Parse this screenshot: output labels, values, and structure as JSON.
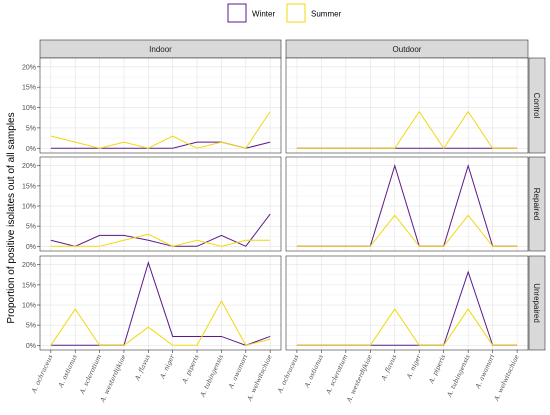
{
  "chart_data": {
    "type": "line",
    "ylabel": "Proportion of positive isolates out of all samples",
    "x": [
      "A. ochraceus",
      "A. ostianus",
      "A. sclerotium",
      "A. westerdijkiae",
      "A. flavus",
      "A. niger",
      "A. piperis",
      "A. tubingensis",
      "A. awamori",
      "A. welwitschiae"
    ],
    "y_ticks": [
      "0%",
      "5%",
      "10%",
      "15%",
      "20%"
    ],
    "ylim": [
      0,
      0.21
    ],
    "col_facets": [
      "Indoor",
      "Outdoor"
    ],
    "row_facets": [
      "Control",
      "Repaired",
      "Unrepaired"
    ],
    "legend": [
      {
        "name": "Winter",
        "color": "#5b1a8b"
      },
      {
        "name": "Summer",
        "color": "#f2d80f"
      }
    ],
    "grid": true,
    "legend_position": "top",
    "panels": [
      {
        "col": "Indoor",
        "row": "Control",
        "series": [
          {
            "name": "Winter",
            "values": [
              0,
              0,
              0,
              0,
              0,
              0,
              0.015,
              0.015,
              0,
              0.015
            ]
          },
          {
            "name": "Summer",
            "values": [
              0.03,
              0.015,
              0,
              0.015,
              0,
              0.03,
              0,
              0.015,
              0,
              0.09
            ]
          }
        ]
      },
      {
        "col": "Outdoor",
        "row": "Control",
        "series": [
          {
            "name": "Winter",
            "values": [
              0,
              0,
              0,
              0,
              0,
              0,
              0,
              0,
              0,
              0
            ]
          },
          {
            "name": "Summer",
            "values": [
              0,
              0,
              0,
              0,
              0,
              0.09,
              0,
              0.09,
              0,
              0
            ]
          }
        ]
      },
      {
        "col": "Indoor",
        "row": "Repaired",
        "series": [
          {
            "name": "Winter",
            "values": [
              0.015,
              0,
              0.027,
              0.027,
              0.015,
              0,
              0,
              0.027,
              0,
              0.08
            ]
          },
          {
            "name": "Summer",
            "values": [
              0,
              0,
              0,
              0.015,
              0.03,
              0,
              0.015,
              0,
              0.015,
              0.015
            ]
          }
        ]
      },
      {
        "col": "Outdoor",
        "row": "Repaired",
        "series": [
          {
            "name": "Winter",
            "values": [
              0,
              0,
              0,
              0,
              0.2,
              0,
              0,
              0.2,
              0,
              0
            ]
          },
          {
            "name": "Summer",
            "values": [
              0,
              0,
              0,
              0,
              0.077,
              0,
              0,
              0.077,
              0,
              0
            ]
          }
        ]
      },
      {
        "col": "Indoor",
        "row": "Unrepaired",
        "series": [
          {
            "name": "Winter",
            "values": [
              0,
              0,
              0,
              0,
              0.205,
              0.022,
              0.022,
              0.022,
              0,
              0.022
            ]
          },
          {
            "name": "Summer",
            "values": [
              0,
              0.09,
              0,
              0,
              0.045,
              0,
              0,
              0.11,
              0,
              0.015
            ]
          }
        ]
      },
      {
        "col": "Outdoor",
        "row": "Unrepaired",
        "series": [
          {
            "name": "Winter",
            "values": [
              0,
              0,
              0,
              0,
              0,
              0,
              0,
              0.182,
              0,
              0
            ]
          },
          {
            "name": "Summer",
            "values": [
              0,
              0,
              0,
              0,
              0.09,
              0,
              0,
              0.09,
              0,
              0
            ]
          }
        ]
      }
    ]
  }
}
